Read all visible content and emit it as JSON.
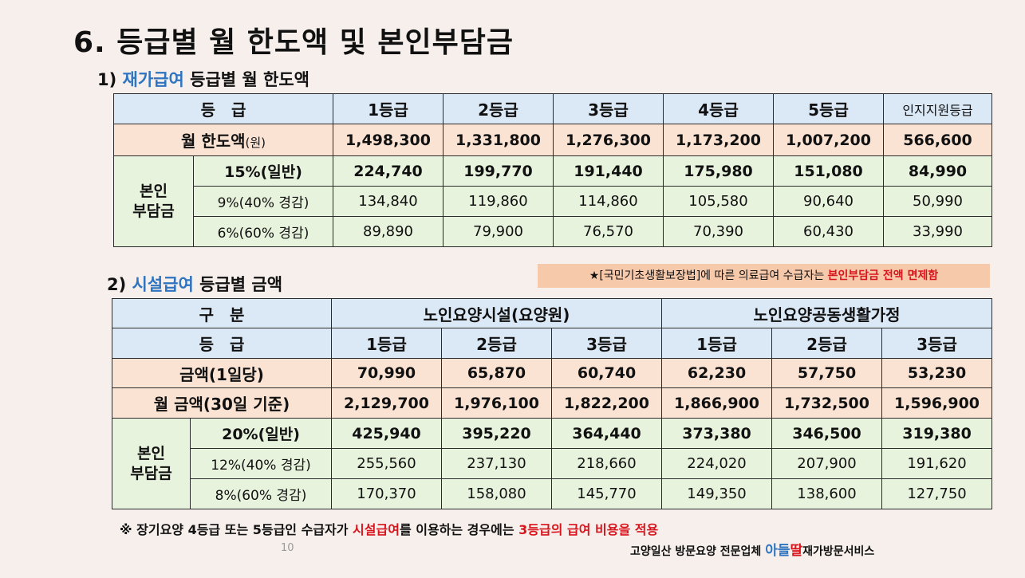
{
  "title": "6. 등급별 월 한도액 및 본인부담금",
  "section1": {
    "num": "1)",
    "accent": "재가급여",
    "rest": "등급별 월 한도액",
    "header": [
      "등　급",
      "1등급",
      "2등급",
      "3등급",
      "4등급",
      "5등급",
      "인지지원등급"
    ],
    "limit_label": "월 한도액",
    "limit_unit": "(원)",
    "limit_values": [
      "1,498,300",
      "1,331,800",
      "1,276,300",
      "1,173,200",
      "1,007,200",
      "566,600"
    ],
    "copay_label_1": "본인",
    "copay_label_2": "부담금",
    "rows": [
      {
        "label": "15%(일반)",
        "values": [
          "224,740",
          "199,770",
          "191,440",
          "175,980",
          "151,080",
          "84,990"
        ]
      },
      {
        "label": "9%(40% 경감)",
        "values": [
          "134,840",
          "119,860",
          "114,860",
          "105,580",
          "90,640",
          "50,990"
        ]
      },
      {
        "label": "6%(60% 경감)",
        "values": [
          "89,890",
          "79,900",
          "76,570",
          "70,390",
          "60,430",
          "33,990"
        ]
      }
    ]
  },
  "notice": {
    "pre": "★[국민기초생활보장법]에 따른 의료급여 수급자는 ",
    "red": "본인부담금 전액 면제함"
  },
  "section2": {
    "num": "2)",
    "accent": "시설급여",
    "rest": "등급별 금액",
    "div_label": "구　분",
    "group1": "노인요양시설(요양원)",
    "group2": "노인요양공동생활가정",
    "grade_label": "등　급",
    "grades": [
      "1등급",
      "2등급",
      "3등급",
      "1등급",
      "2등급",
      "3등급"
    ],
    "daily_label": "금액(1일당)",
    "daily_values": [
      "70,990",
      "65,870",
      "60,740",
      "62,230",
      "57,750",
      "53,230"
    ],
    "monthly_label": "월 금액(30일 기준)",
    "monthly_values": [
      "2,129,700",
      "1,976,100",
      "1,822,200",
      "1,866,900",
      "1,732,500",
      "1,596,900"
    ],
    "copay_label_1": "본인",
    "copay_label_2": "부담금",
    "rows": [
      {
        "label": "20%(일반)",
        "values": [
          "425,940",
          "395,220",
          "364,440",
          "373,380",
          "346,500",
          "319,380"
        ]
      },
      {
        "label": "12%(40% 경감)",
        "values": [
          "255,560",
          "237,130",
          "218,660",
          "224,020",
          "207,900",
          "191,620"
        ]
      },
      {
        "label": "8%(60% 경감)",
        "values": [
          "170,370",
          "158,080",
          "145,770",
          "149,350",
          "138,600",
          "127,750"
        ]
      }
    ]
  },
  "footnote": {
    "pre": "※ 장기요양 4등급 또는 5등급인 수급자가 ",
    "red1": "시설급여",
    "mid": "를 이용하는 경우에는 ",
    "red2": "3등급의 급여 비용을 적용"
  },
  "page_number": "10",
  "brand": {
    "pre": "고양일산 방문요양 전문업체 ",
    "blue": "아들",
    "red": "딸",
    "post": "재가방문서비스"
  }
}
